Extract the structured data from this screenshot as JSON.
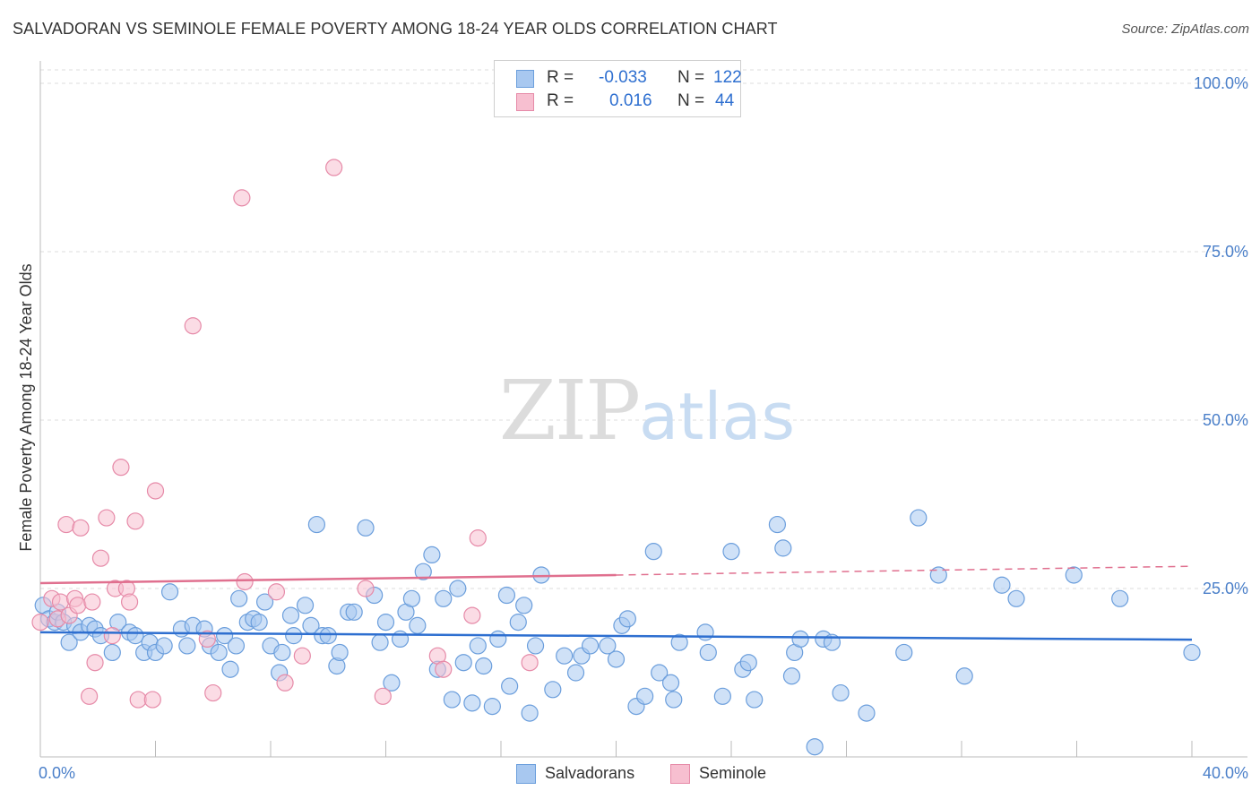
{
  "header": {
    "title": "SALVADORAN VS SEMINOLE FEMALE POVERTY AMONG 18-24 YEAR OLDS CORRELATION CHART",
    "source": "Source: ZipAtlas.com"
  },
  "watermark": {
    "zip": "ZIP",
    "atlas": "atlas"
  },
  "legend": {
    "rows": [
      {
        "r_label": "R =",
        "r_value": "-0.033",
        "n_label": "N =",
        "n_value": "122",
        "color": "#a8c8f0",
        "border": "#6b9edc"
      },
      {
        "r_label": "R =",
        "r_value": "0.016",
        "n_label": "N =",
        "n_value": "44",
        "color": "#f7bfd0",
        "border": "#e68aa8"
      }
    ]
  },
  "bottom_legend": [
    {
      "label": "Salvadorans",
      "color": "#a8c8f0",
      "border": "#6b9edc"
    },
    {
      "label": "Seminole",
      "color": "#f7bfd0",
      "border": "#e68aa8"
    }
  ],
  "chart_data": {
    "type": "scatter",
    "title": "SALVADORAN VS SEMINOLE FEMALE POVERTY AMONG 18-24 YEAR OLDS CORRELATION CHART",
    "xlabel": "",
    "ylabel": "Female Poverty Among 18-24 Year Olds",
    "xlim": [
      0,
      40
    ],
    "ylim": [
      0,
      102
    ],
    "x_tick_labels": [
      "0.0%",
      "40.0%"
    ],
    "y_ticks": [
      25,
      50,
      75,
      100
    ],
    "y_tick_labels": [
      "25.0%",
      "50.0%",
      "75.0%",
      "100.0%"
    ],
    "grid": true,
    "series": [
      {
        "name": "Salvadorans",
        "color": "#6b9edc",
        "fill": "#a8c8f0",
        "trend": {
          "x0": 0,
          "y0": 18.5,
          "x1": 40,
          "y1": 17.4
        },
        "points": [
          [
            0.1,
            22.5
          ],
          [
            0.3,
            20.5
          ],
          [
            0.5,
            20.0
          ],
          [
            0.6,
            21.5
          ],
          [
            0.8,
            20.0
          ],
          [
            1.0,
            17.0
          ],
          [
            1.2,
            19.5
          ],
          [
            1.4,
            18.5
          ],
          [
            1.7,
            19.5
          ],
          [
            1.9,
            19.0
          ],
          [
            2.1,
            18.0
          ],
          [
            2.5,
            15.5
          ],
          [
            2.7,
            20.0
          ],
          [
            3.1,
            18.5
          ],
          [
            3.3,
            18.0
          ],
          [
            3.6,
            15.5
          ],
          [
            3.8,
            17.0
          ],
          [
            4.0,
            15.5
          ],
          [
            4.3,
            16.5
          ],
          [
            4.5,
            24.5
          ],
          [
            4.9,
            19.0
          ],
          [
            5.1,
            16.5
          ],
          [
            5.3,
            19.5
          ],
          [
            5.7,
            19.0
          ],
          [
            5.9,
            16.5
          ],
          [
            6.2,
            15.5
          ],
          [
            6.4,
            18.0
          ],
          [
            6.6,
            13.0
          ],
          [
            6.8,
            16.5
          ],
          [
            6.9,
            23.5
          ],
          [
            7.2,
            20.0
          ],
          [
            7.4,
            20.5
          ],
          [
            7.6,
            20.0
          ],
          [
            7.8,
            23.0
          ],
          [
            8.0,
            16.5
          ],
          [
            8.3,
            12.5
          ],
          [
            8.4,
            15.5
          ],
          [
            8.7,
            21.0
          ],
          [
            8.8,
            18.0
          ],
          [
            9.2,
            22.5
          ],
          [
            9.4,
            19.5
          ],
          [
            9.6,
            34.5
          ],
          [
            9.8,
            18.0
          ],
          [
            10.0,
            18.0
          ],
          [
            10.3,
            13.5
          ],
          [
            10.4,
            15.5
          ],
          [
            10.7,
            21.5
          ],
          [
            10.9,
            21.5
          ],
          [
            11.3,
            34.0
          ],
          [
            11.6,
            24.0
          ],
          [
            11.8,
            17.0
          ],
          [
            12.0,
            20.0
          ],
          [
            12.2,
            11.0
          ],
          [
            12.5,
            17.5
          ],
          [
            12.7,
            21.5
          ],
          [
            12.9,
            23.5
          ],
          [
            13.1,
            19.5
          ],
          [
            13.3,
            27.5
          ],
          [
            13.6,
            30.0
          ],
          [
            13.8,
            13.0
          ],
          [
            14.0,
            23.5
          ],
          [
            14.3,
            8.5
          ],
          [
            14.5,
            25.0
          ],
          [
            14.7,
            14.0
          ],
          [
            15.0,
            8.0
          ],
          [
            15.2,
            16.5
          ],
          [
            15.4,
            13.5
          ],
          [
            15.7,
            7.5
          ],
          [
            15.9,
            17.5
          ],
          [
            16.2,
            24.0
          ],
          [
            16.3,
            10.5
          ],
          [
            16.6,
            20.0
          ],
          [
            16.8,
            22.5
          ],
          [
            17.0,
            6.5
          ],
          [
            17.2,
            16.5
          ],
          [
            17.4,
            27.0
          ],
          [
            17.8,
            10.0
          ],
          [
            18.2,
            15.0
          ],
          [
            18.6,
            12.5
          ],
          [
            18.8,
            15.0
          ],
          [
            19.1,
            16.5
          ],
          [
            19.7,
            16.5
          ],
          [
            20.0,
            14.5
          ],
          [
            20.2,
            19.5
          ],
          [
            20.4,
            20.5
          ],
          [
            20.7,
            7.5
          ],
          [
            21.0,
            9.0
          ],
          [
            21.3,
            30.5
          ],
          [
            21.5,
            12.5
          ],
          [
            21.9,
            11.0
          ],
          [
            22.0,
            8.5
          ],
          [
            22.2,
            17.0
          ],
          [
            23.1,
            18.5
          ],
          [
            23.2,
            15.5
          ],
          [
            23.7,
            9.0
          ],
          [
            24.0,
            30.5
          ],
          [
            24.4,
            13.0
          ],
          [
            24.6,
            14.0
          ],
          [
            24.8,
            8.5
          ],
          [
            25.6,
            34.5
          ],
          [
            25.8,
            31.0
          ],
          [
            26.1,
            12.0
          ],
          [
            26.2,
            15.5
          ],
          [
            26.4,
            17.5
          ],
          [
            26.9,
            1.5
          ],
          [
            27.2,
            17.5
          ],
          [
            27.5,
            17.0
          ],
          [
            27.8,
            9.5
          ],
          [
            28.7,
            6.5
          ],
          [
            30.0,
            15.5
          ],
          [
            30.5,
            35.5
          ],
          [
            31.2,
            27.0
          ],
          [
            32.1,
            12.0
          ],
          [
            33.4,
            25.5
          ],
          [
            33.9,
            23.5
          ],
          [
            35.9,
            27.0
          ],
          [
            37.5,
            23.5
          ],
          [
            40.0,
            15.5
          ]
        ]
      },
      {
        "name": "Seminole",
        "color": "#e68aa8",
        "fill": "#f7bfd0",
        "trend": {
          "x0": 0,
          "y0": 25.8,
          "x1": 20,
          "y1": 27.0,
          "dashed_to_x": 40,
          "dashed_to_y": 28.3
        },
        "points": [
          [
            0.0,
            20.0
          ],
          [
            0.4,
            23.5
          ],
          [
            0.6,
            20.5
          ],
          [
            0.7,
            23.0
          ],
          [
            0.9,
            34.5
          ],
          [
            1.0,
            21.0
          ],
          [
            1.2,
            23.5
          ],
          [
            1.3,
            22.5
          ],
          [
            1.4,
            34.0
          ],
          [
            1.7,
            9.0
          ],
          [
            1.8,
            23.0
          ],
          [
            1.9,
            14.0
          ],
          [
            2.1,
            29.5
          ],
          [
            2.3,
            35.5
          ],
          [
            2.5,
            18.0
          ],
          [
            2.6,
            25.0
          ],
          [
            2.8,
            43.0
          ],
          [
            3.0,
            25.0
          ],
          [
            3.1,
            23.0
          ],
          [
            3.3,
            35.0
          ],
          [
            3.4,
            8.5
          ],
          [
            3.9,
            8.5
          ],
          [
            4.0,
            39.5
          ],
          [
            5.3,
            64.0
          ],
          [
            5.8,
            17.5
          ],
          [
            6.0,
            9.5
          ],
          [
            7.0,
            83.0
          ],
          [
            7.1,
            26.0
          ],
          [
            8.2,
            24.5
          ],
          [
            8.5,
            11.0
          ],
          [
            9.1,
            15.0
          ],
          [
            10.2,
            87.5
          ],
          [
            11.3,
            25.0
          ],
          [
            11.9,
            9.0
          ],
          [
            13.8,
            15.0
          ],
          [
            14.0,
            13.0
          ],
          [
            15.0,
            21.0
          ],
          [
            15.2,
            32.5
          ],
          [
            17.0,
            14.0
          ]
        ]
      }
    ]
  }
}
